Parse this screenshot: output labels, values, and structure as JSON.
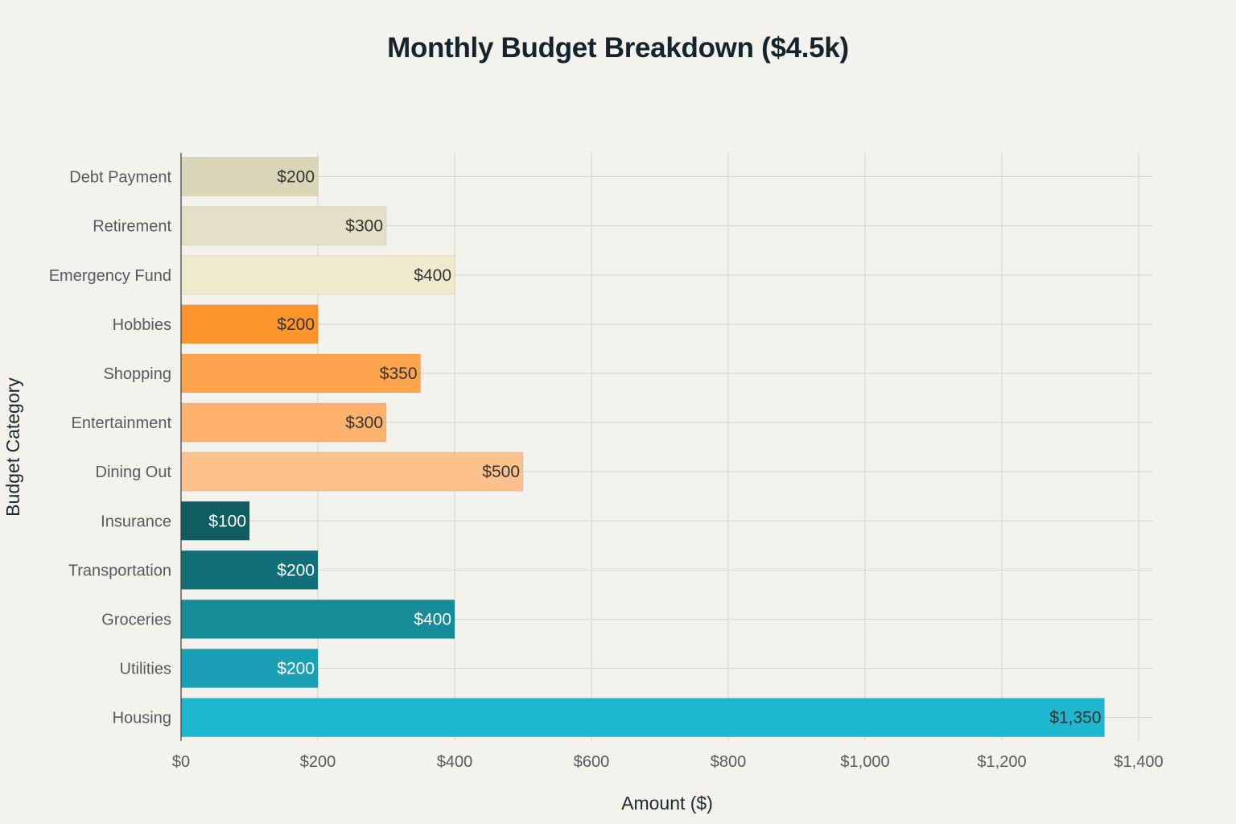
{
  "chart_data": {
    "type": "bar",
    "orientation": "horizontal",
    "title": "Monthly Budget Breakdown ($4.5k)",
    "xlabel": "Amount ($)",
    "ylabel": "Budget Category",
    "xlim": [
      0,
      1400
    ],
    "x_ticks": [
      0,
      200,
      400,
      600,
      800,
      1000,
      1200,
      1400
    ],
    "x_tick_labels": [
      "$0",
      "$200",
      "$400",
      "$600",
      "$800",
      "$1,000",
      "$1,200",
      "$1,400"
    ],
    "grid": true,
    "categories": [
      "Debt Payment",
      "Retirement",
      "Emergency Fund",
      "Hobbies",
      "Shopping",
      "Entertainment",
      "Dining Out",
      "Insurance",
      "Transportation",
      "Groceries",
      "Utilities",
      "Housing"
    ],
    "values": [
      200,
      300,
      400,
      200,
      350,
      300,
      500,
      100,
      200,
      400,
      200,
      1350
    ],
    "value_labels": [
      "$200",
      "$300",
      "$400",
      "$200",
      "$350",
      "$300",
      "$500",
      "$100",
      "$200",
      "$400",
      "$200",
      "$1,350"
    ],
    "colors": [
      "#d9d7b7",
      "#e3e0c6",
      "#edeace",
      "#fe952c",
      "#fea44c",
      "#feb26e",
      "#fec08c",
      "#0f5d63",
      "#136f77",
      "#168b99",
      "#1aa0b4",
      "#1fb7cd"
    ],
    "label_colors": [
      "#333333",
      "#333333",
      "#333333",
      "#333333",
      "#333333",
      "#333333",
      "#333333",
      "#ffffff",
      "#ffffff",
      "#ffffff",
      "#ffffff",
      "#333333"
    ]
  }
}
